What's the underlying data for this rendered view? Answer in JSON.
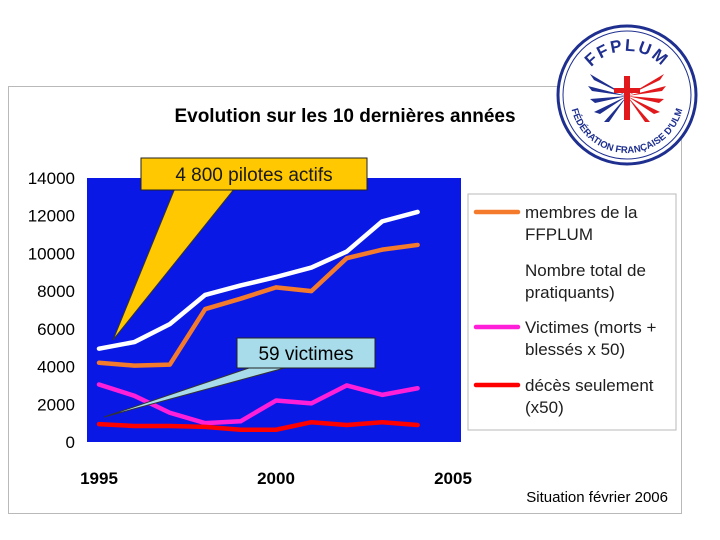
{
  "chart_data": {
    "type": "line",
    "title": "Evolution sur les 10 dernières années",
    "x": [
      1995,
      1996,
      1997,
      1998,
      1999,
      2000,
      2001,
      2002,
      2003,
      2004,
      2005
    ],
    "x_tick_labels": [
      "1995",
      "2000",
      "2005"
    ],
    "y_tick_labels": [
      "0",
      "2000",
      "4000",
      "6000",
      "8000",
      "10000",
      "12000",
      "14000"
    ],
    "ylim": [
      0,
      14000
    ],
    "grid": false,
    "legend_position": "right",
    "plot_background": "#0a18e6",
    "series": [
      {
        "name": "membres de la FFPLUM",
        "color": "#f47a2c",
        "values": [
          4200,
          4050,
          4100,
          7050,
          7600,
          8200,
          8000,
          9750,
          10200,
          10450,
          null
        ]
      },
      {
        "name": "Nombre total de pratiquants)",
        "color": "#ffffff",
        "values": [
          4950,
          5300,
          6250,
          7800,
          8300,
          8750,
          9250,
          10100,
          11700,
          12200,
          null
        ]
      },
      {
        "name": "Victimes (morts + blessés x 50)",
        "color": "#ff1fd9",
        "values": [
          3050,
          2450,
          1550,
          1000,
          1100,
          2200,
          2050,
          3000,
          2500,
          2850,
          null
        ]
      },
      {
        "name": "décès seulement (x50)",
        "color": "#ff0000",
        "values": [
          950,
          850,
          850,
          800,
          650,
          650,
          1050,
          900,
          1050,
          900,
          null
        ]
      }
    ],
    "legend_lines": [
      [
        "membres de la",
        "FFPLUM"
      ],
      [
        "Nombre total de",
        "pratiquants)"
      ],
      [
        "Victimes (morts +",
        "blessés x 50)"
      ],
      [
        "décès seulement",
        "(x50)"
      ]
    ],
    "annotations": [
      {
        "text": "4 800 pilotes actifs",
        "box_fill": "#ffc800",
        "text_color": "#1a1a1a",
        "border": "#222222"
      },
      {
        "text": "59 victimes",
        "box_fill": "#a8dcea",
        "text_color": "#000000",
        "border": "#222222"
      }
    ]
  },
  "footer_note": "Situation février 2006",
  "logo": {
    "top_text": "FFPLUM",
    "bottom_text": "FÉDÉRATION FRANÇAISE D'ULM",
    "colors": {
      "ring": "#ffffff",
      "border": "#1e2f8f",
      "red": "#e2191c",
      "blue": "#1e2f8f"
    }
  }
}
